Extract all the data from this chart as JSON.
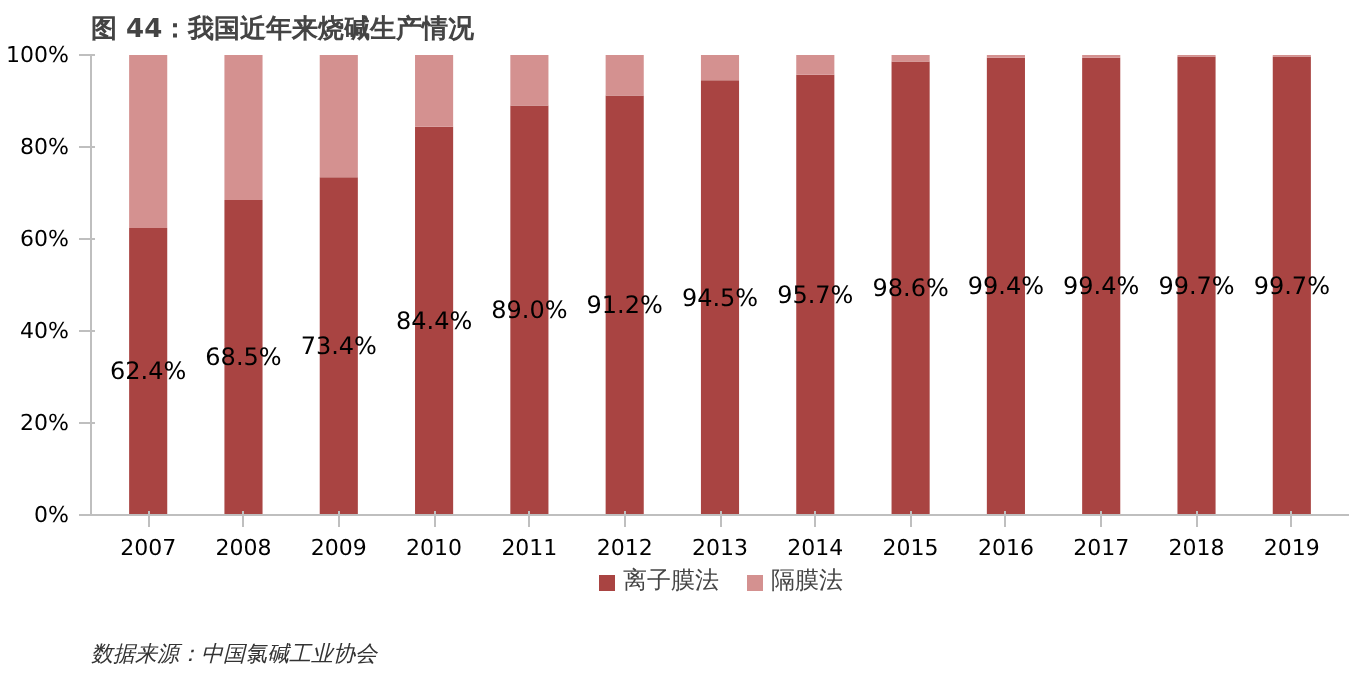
{
  "chart_data": {
    "type": "bar",
    "title": "图 44：我国近年来烧碱生产情况",
    "categories": [
      "2007",
      "2008",
      "2009",
      "2010",
      "2011",
      "2012",
      "2013",
      "2014",
      "2015",
      "2016",
      "2017",
      "2018",
      "2019"
    ],
    "stacked": true,
    "series": [
      {
        "name": "离子膜法",
        "color": "#a94442",
        "values": [
          62.4,
          68.5,
          73.4,
          84.4,
          89.0,
          91.2,
          94.5,
          95.7,
          98.6,
          99.4,
          99.4,
          99.7,
          99.7
        ],
        "value_labels": [
          "62.4%",
          "68.5%",
          "73.4%",
          "84.4%",
          "89.0%",
          "91.2%",
          "94.5%",
          "95.7%",
          "98.6%",
          "99.4%",
          "99.4%",
          "99.7%",
          "99.7%"
        ]
      },
      {
        "name": "隔膜法",
        "color": "#d49190",
        "values": [
          37.6,
          31.5,
          26.6,
          15.6,
          11.0,
          8.8,
          5.5,
          4.3,
          1.4,
          0.6,
          0.6,
          0.3,
          0.3
        ]
      }
    ],
    "ylim": [
      0,
      100
    ],
    "yticks": [
      {
        "value": 0,
        "label": "0%"
      },
      {
        "value": 20,
        "label": "20%"
      },
      {
        "value": 40,
        "label": "40%"
      },
      {
        "value": 60,
        "label": "60%"
      },
      {
        "value": 80,
        "label": "80%"
      },
      {
        "value": 100,
        "label": "100%"
      }
    ],
    "grid": false,
    "legend": "bottom",
    "annotations": [
      "数据来源：中国氯碱工业协会"
    ]
  }
}
